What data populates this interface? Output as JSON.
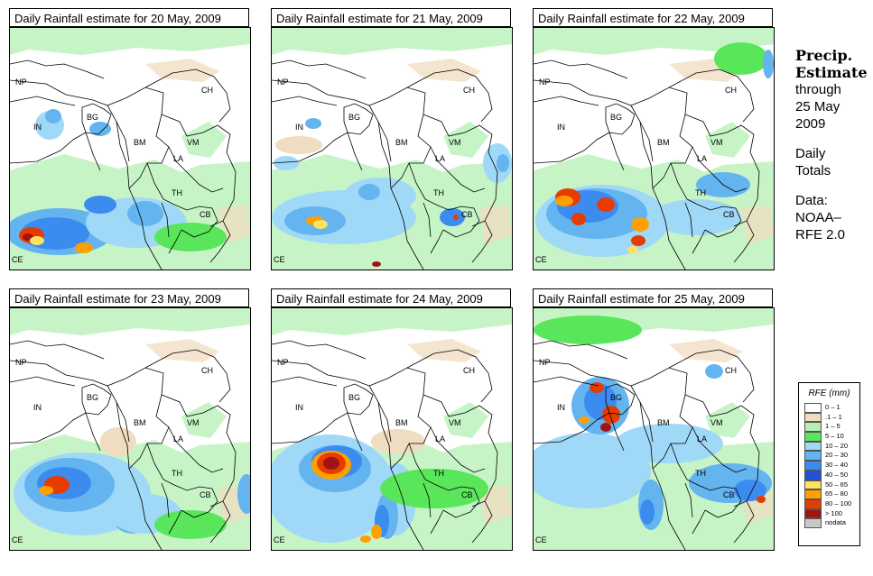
{
  "panels": [
    {
      "title": "Daily Rainfall estimate for  20 May, 2009",
      "labels": [
        "NP",
        "IN",
        "BG",
        "BM",
        "CH",
        "VM",
        "LA",
        "TH",
        "CB",
        "CE"
      ]
    },
    {
      "title": "Daily Rainfall estimate for  21 May, 2009",
      "labels": [
        "NP",
        "IN",
        "BG",
        "BM",
        "CH",
        "VM",
        "LA",
        "TH",
        "CB",
        "CE"
      ]
    },
    {
      "title": "Daily Rainfall estimate for  22 May, 2009",
      "labels": [
        "NP",
        "IN",
        "BG",
        "BM",
        "CH",
        "VM",
        "LA",
        "TH",
        "CB",
        "CE"
      ]
    },
    {
      "title": "Daily Rainfall estimate for  23 May, 2009",
      "labels": [
        "NP",
        "IN",
        "BG",
        "BM",
        "CH",
        "VM",
        "LA",
        "TH",
        "CB",
        "CE"
      ]
    },
    {
      "title": "Daily Rainfall estimate for  24 May, 2009",
      "labels": [
        "NP",
        "IN",
        "BG",
        "BM",
        "CH",
        "VM",
        "LA",
        "TH",
        "CB",
        "CE"
      ]
    },
    {
      "title": "Daily Rainfall estimate for  25 May, 2009",
      "labels": [
        "NP",
        "IN",
        "BG",
        "BM",
        "CH",
        "VM",
        "LA",
        "TH",
        "CB",
        "CE"
      ]
    }
  ],
  "sidebar": {
    "heading_line1": "Precip.",
    "heading_line2": "Estimate",
    "through": "through",
    "date_line1": "25 May",
    "date_line2": "2009",
    "daily_line1": "Daily",
    "daily_line2": "Totals",
    "data_line1": "Data:",
    "data_line2": "NOAA–",
    "data_line3": "RFE 2.0"
  },
  "legend": {
    "title": "RFE (mm)",
    "items": [
      {
        "label": "0 – 1",
        "color": "#ffffff"
      },
      {
        "label": ".1 – 1",
        "color": "#f0dcc0"
      },
      {
        "label": "1 – 5",
        "color": "#b4f0b4"
      },
      {
        "label": "5 – 10",
        "color": "#5ae65a"
      },
      {
        "label": "10 – 20",
        "color": "#a0d8f8"
      },
      {
        "label": "20 – 30",
        "color": "#64b4f0"
      },
      {
        "label": "30 – 40",
        "color": "#3c8cf0"
      },
      {
        "label": "40 – 50",
        "color": "#1e50dc"
      },
      {
        "label": "50 – 65",
        "color": "#ffe164"
      },
      {
        "label": "65 – 80",
        "color": "#ffa000"
      },
      {
        "label": "80 – 100",
        "color": "#e63c00"
      },
      {
        "label": "> 100",
        "color": "#a01414"
      },
      {
        "label": "nodata",
        "color": "#c8c8c8"
      }
    ]
  },
  "colors": {
    "land": "#ffffff",
    "border": "#000000",
    "beige": "#f0dcc0",
    "lightgreen": "#b4f0b4",
    "green": "#5ae65a",
    "lightblue": "#a0d8f8",
    "blue": "#64b4f0",
    "midblue": "#3c8cf0",
    "darkblue": "#1e50dc",
    "yellow": "#ffe164",
    "orange": "#ffa000",
    "red": "#e63c00",
    "darkred": "#a01414"
  }
}
